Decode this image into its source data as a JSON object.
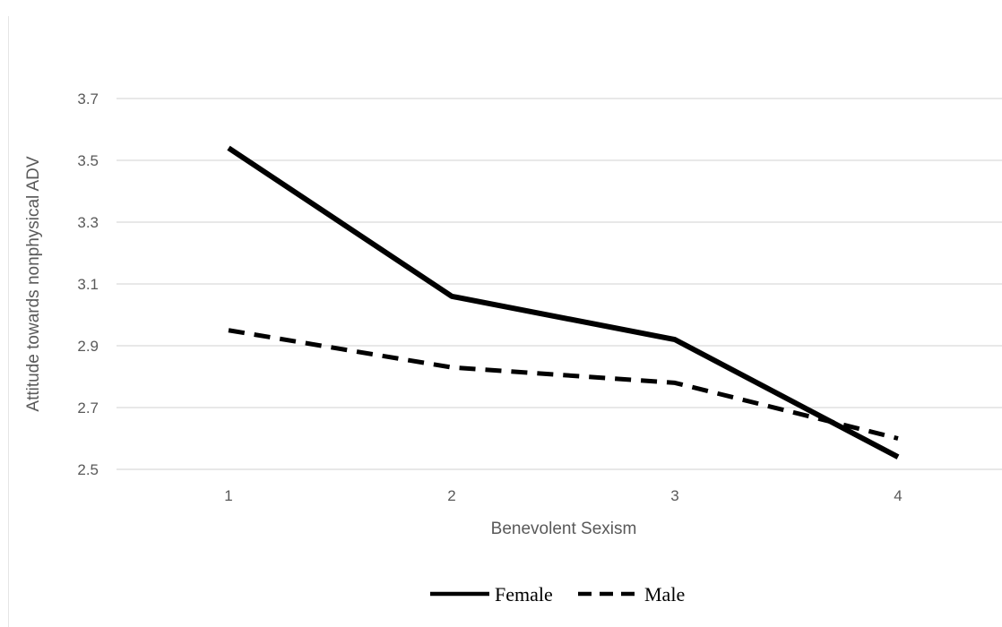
{
  "chart_data": {
    "type": "line",
    "categories": [
      "1",
      "2",
      "3",
      "4"
    ],
    "xlabel": "Benevolent Sexism",
    "ylabel": "Attitude towards nonphysical ADV",
    "ylim": [
      2.5,
      3.7
    ],
    "yticks": [
      "2.5",
      "2.7",
      "2.9",
      "3.1",
      "3.3",
      "3.5",
      "3.7"
    ],
    "grid": true,
    "legend_position": "bottom",
    "series": [
      {
        "name": "Female",
        "values": [
          3.54,
          3.06,
          2.92,
          2.54
        ],
        "style": "solid",
        "color": "#000000"
      },
      {
        "name": "Male",
        "values": [
          2.95,
          2.83,
          2.78,
          2.6
        ],
        "style": "dashed",
        "color": "#000000"
      }
    ]
  }
}
